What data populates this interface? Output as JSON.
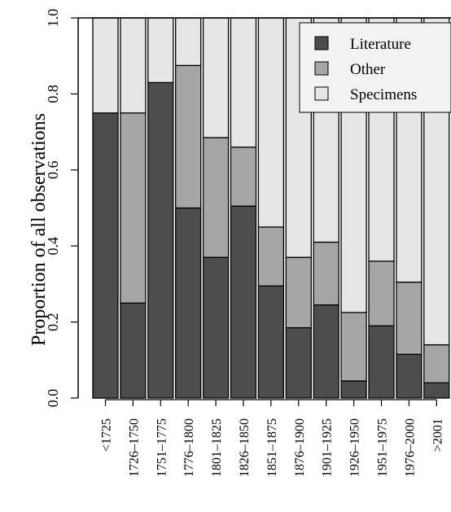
{
  "chart_data": {
    "type": "bar",
    "stacked": true,
    "ylabel": "Proportion of all observations",
    "ylim": [
      0,
      1.0
    ],
    "yticks": [
      "0.0",
      "0.2",
      "0.4",
      "0.6",
      "0.8",
      "1.0"
    ],
    "categories": [
      "<1725",
      "1726–1750",
      "1751–1775",
      "1776–1800",
      "1801–1825",
      "1826–1850",
      "1851–1875",
      "1876–1900",
      "1901–1925",
      "1926–1950",
      "1951–1975",
      "1976–2000",
      ">2001"
    ],
    "series": [
      {
        "name": "Literature",
        "color": "#4d4d4d",
        "values": [
          0.75,
          0.25,
          0.83,
          0.5,
          0.37,
          0.505,
          0.295,
          0.185,
          0.245,
          0.045,
          0.19,
          0.115,
          0.04
        ]
      },
      {
        "name": "Other",
        "color": "#a6a6a6",
        "values": [
          0.0,
          0.5,
          0.0,
          0.375,
          0.315,
          0.155,
          0.155,
          0.185,
          0.165,
          0.18,
          0.17,
          0.19,
          0.1
        ]
      },
      {
        "name": "Specimens",
        "color": "#e6e6e6",
        "values": [
          0.25,
          0.25,
          0.17,
          0.125,
          0.315,
          0.34,
          0.55,
          0.63,
          0.59,
          0.775,
          0.64,
          0.695,
          0.86
        ]
      }
    ],
    "legend": {
      "position": "top-right",
      "entries": [
        "Literature",
        "Other",
        "Specimens"
      ]
    },
    "grid": false
  }
}
